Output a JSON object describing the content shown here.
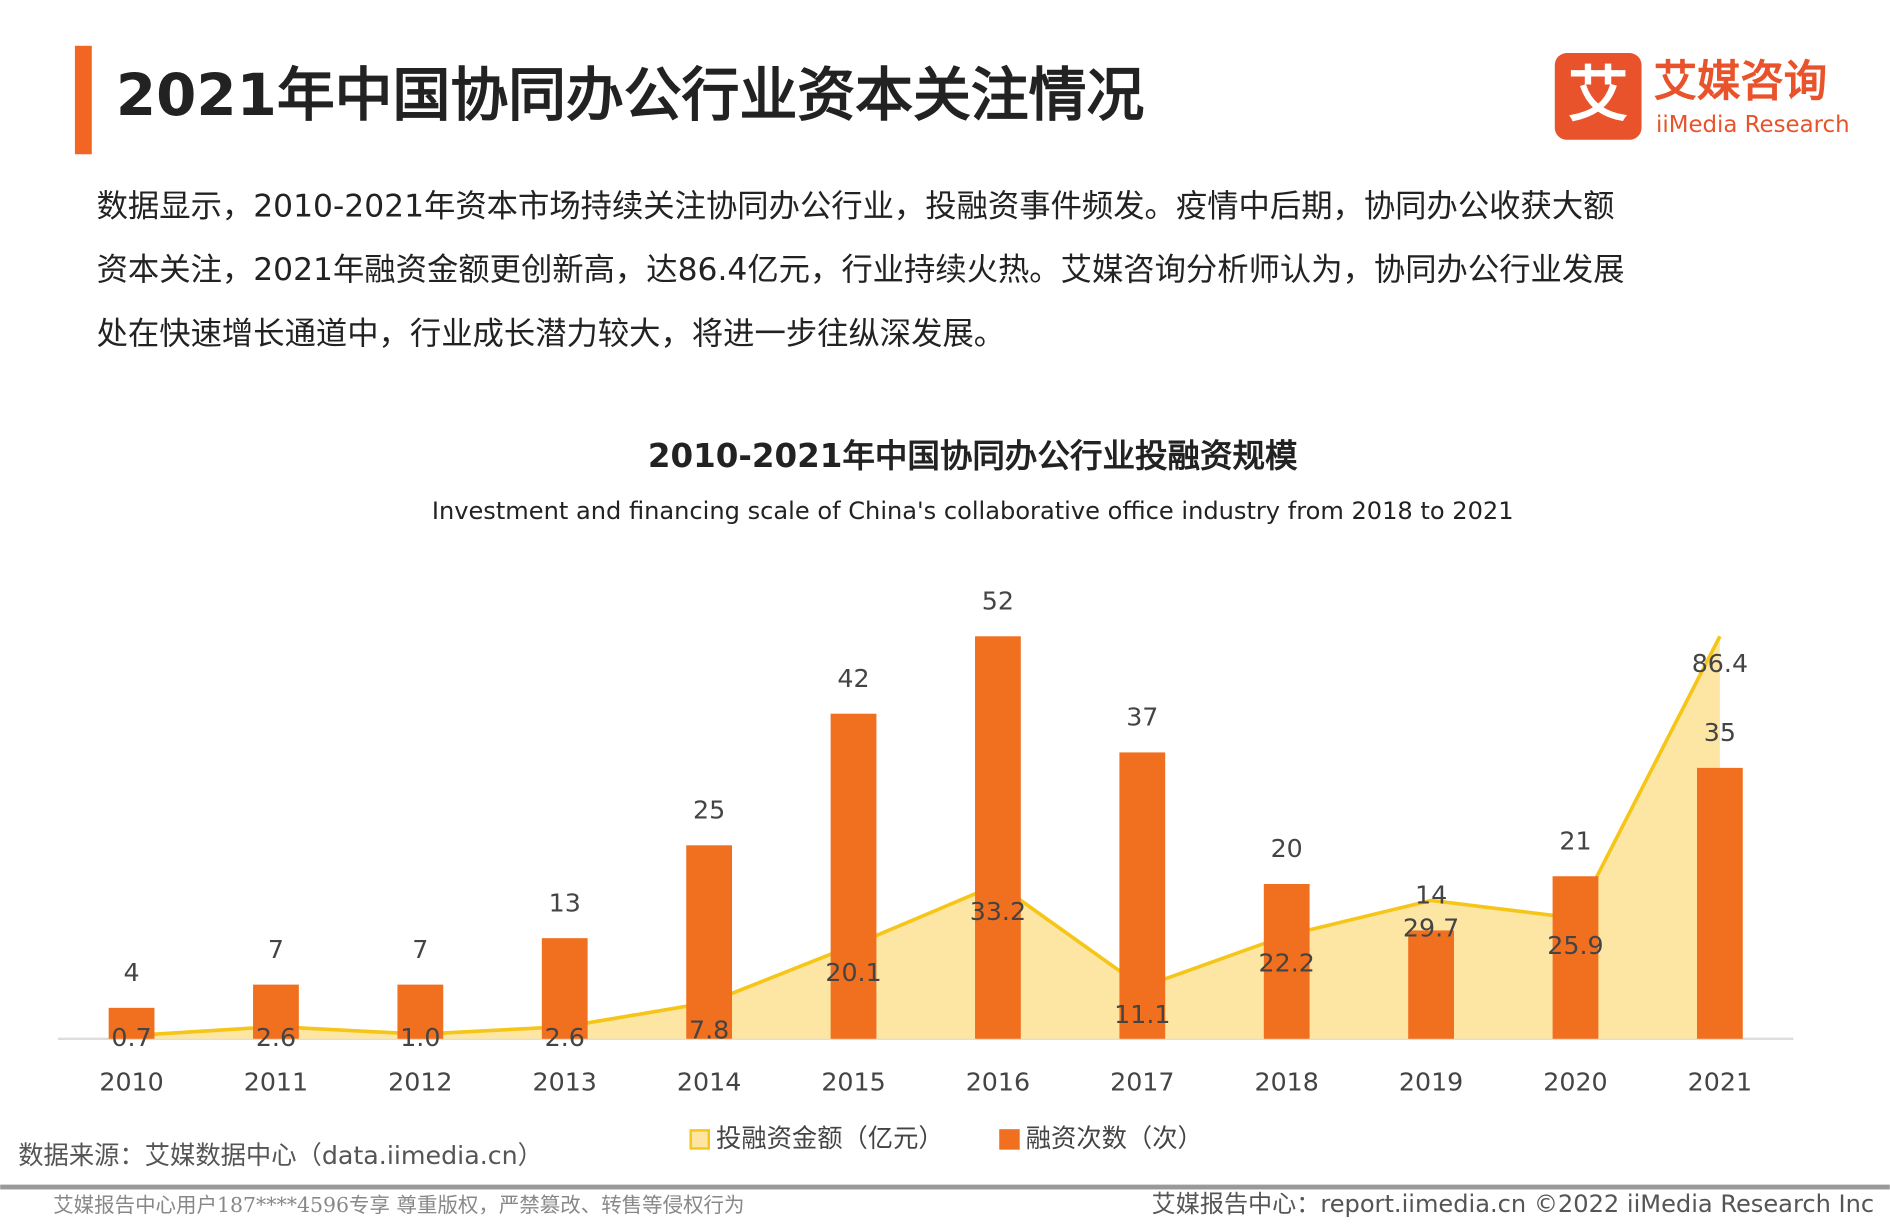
{
  "header": {
    "title": "2021年中国协同办公行业资本关注情况",
    "logo_cn": "艾媒咨询",
    "logo_en": "iiMedia Research",
    "logo_mark": "艾"
  },
  "paragraph": [
    "数据显示，2010-2021年资本市场持续关注协同办公行业，投融资事件频发。疫情中后期，协同办公收获大额",
    "资本关注，2021年融资金额更创新高，达86.4亿元，行业持续火热。艾媒咨询分析师认为，协同办公行业发展",
    "处在快速增长通道中，行业成长潜力较大，将进一步往纵深发展。"
  ],
  "chart_data": {
    "type": "bar-area",
    "title": "2010-2021年中国协同办公行业投融资规模",
    "subtitle": "Investment and financing scale of China's collaborative office industry from 2018 to 2021",
    "categories": [
      "2010",
      "2011",
      "2012",
      "2013",
      "2014",
      "2015",
      "2016",
      "2017",
      "2018",
      "2019",
      "2020",
      "2021"
    ],
    "series": [
      {
        "name": "投融资金额（亿元）",
        "color": "#f5c518",
        "fill": "#fde6a4",
        "type": "area",
        "axis": "y2",
        "values": [
          0.7,
          2.6,
          1.0,
          2.6,
          7.8,
          20.1,
          33.2,
          11.1,
          22.2,
          29.7,
          25.9,
          86.4
        ],
        "value_labels": [
          "0.7",
          "2.6",
          "1.0",
          "2.6",
          "7.8",
          "20.1",
          "33.2",
          "11.1",
          "22.2",
          "29.7",
          "25.9",
          "86.4"
        ]
      },
      {
        "name": "融资次数（次）",
        "color": "#f07020",
        "type": "bar",
        "values": [
          4,
          7,
          7,
          13,
          25,
          42,
          52,
          37,
          20,
          14,
          21,
          35
        ]
      }
    ],
    "ylim": [
      0,
      52
    ],
    "y2lim": [
      0,
      86.4
    ]
  },
  "source": "数据来源：艾媒数据中心（data.iimedia.cn）",
  "footer": {
    "left": "艾媒报告中心用户187****4596专享 尊重版权，严禁篡改、转售等侵权行为",
    "right": "艾媒报告中心：report.iimedia.cn   ©2022  iiMedia Research  Inc"
  }
}
